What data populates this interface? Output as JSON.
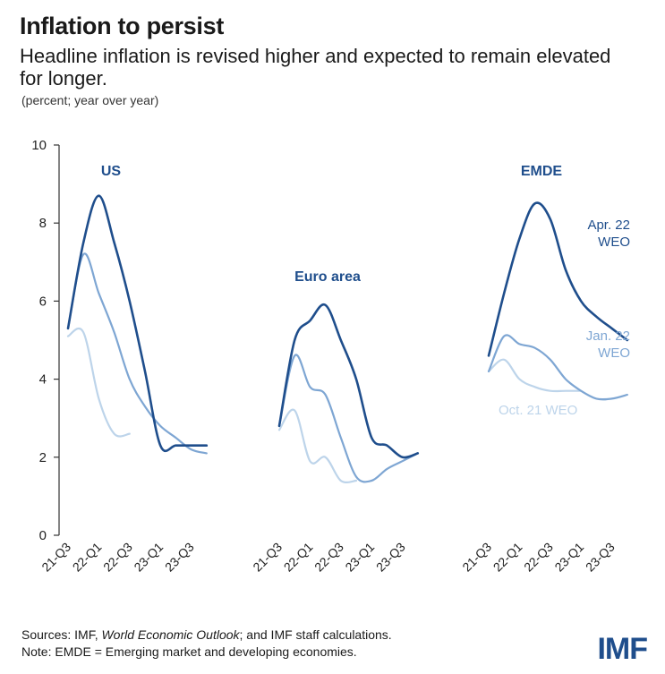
{
  "header": {
    "title": "Inflation to persist",
    "subtitle": "Headline inflation is revised higher and expected to remain elevated for longer.",
    "unit": "(percent; year over year)"
  },
  "footer": {
    "sources_prefix": "Sources: IMF, ",
    "sources_italic": "World Economic Outlook",
    "sources_suffix": "; and IMF staff calculations.",
    "note": "Note: EMDE = Emerging market and developing economies.",
    "logo": "IMF"
  },
  "colors": {
    "apr22": "#1f4e8c",
    "jan22": "#7ea6d3",
    "oct21": "#bdd4ea",
    "axis": "#333333"
  },
  "chart_data": {
    "type": "line",
    "ylim": [
      0,
      10
    ],
    "yticks": [
      0,
      2,
      4,
      6,
      8,
      10
    ],
    "xticks": [
      "21-Q3",
      "22-Q1",
      "22-Q3",
      "23-Q1",
      "23-Q3"
    ],
    "series_labels": {
      "apr22": "Apr. 22\nWEO",
      "jan22": "Jan. 22\nWEO",
      "oct21": "Oct. 21 WEO"
    },
    "panels": [
      {
        "name": "US",
        "series": [
          {
            "key": "oct21",
            "x": [
              0,
              1,
              2,
              3,
              4
            ],
            "y": [
              5.1,
              5.2,
              3.5,
              2.6,
              2.6
            ]
          },
          {
            "key": "jan22",
            "x": [
              0,
              1,
              2,
              3,
              4,
              5,
              6,
              7,
              8,
              9
            ],
            "y": [
              5.3,
              7.2,
              6.2,
              5.2,
              4.0,
              3.3,
              2.8,
              2.5,
              2.2,
              2.1
            ]
          },
          {
            "key": "apr22",
            "x": [
              0,
              1,
              2,
              3,
              4,
              5,
              6,
              7,
              8,
              9
            ],
            "y": [
              5.3,
              7.5,
              8.7,
              7.5,
              6.0,
              4.2,
              2.3,
              2.3,
              2.3,
              2.3
            ]
          }
        ]
      },
      {
        "name": "Euro area",
        "series": [
          {
            "key": "oct21",
            "x": [
              0,
              1,
              2,
              3,
              4,
              5
            ],
            "y": [
              2.7,
              3.2,
              1.9,
              2.0,
              1.4,
              1.4
            ]
          },
          {
            "key": "jan22",
            "x": [
              0,
              1,
              2,
              3,
              4,
              5,
              6,
              7,
              8,
              9
            ],
            "y": [
              2.8,
              4.6,
              3.8,
              3.6,
              2.5,
              1.5,
              1.4,
              1.7,
              1.9,
              2.1
            ]
          },
          {
            "key": "apr22",
            "x": [
              0,
              1,
              2,
              3,
              4,
              5,
              6,
              7,
              8,
              9
            ],
            "y": [
              2.8,
              5.0,
              5.5,
              5.9,
              5.0,
              4.0,
              2.5,
              2.3,
              2.0,
              2.1
            ]
          }
        ]
      },
      {
        "name": "EMDE",
        "series": [
          {
            "key": "oct21",
            "x": [
              0,
              1,
              2,
              3,
              4,
              5,
              6
            ],
            "y": [
              4.2,
              4.5,
              4.0,
              3.8,
              3.7,
              3.7,
              3.7
            ]
          },
          {
            "key": "jan22",
            "x": [
              0,
              1,
              2,
              3,
              4,
              5,
              6,
              7,
              8,
              9
            ],
            "y": [
              4.2,
              5.1,
              4.9,
              4.8,
              4.5,
              4.0,
              3.7,
              3.5,
              3.5,
              3.6
            ]
          },
          {
            "key": "apr22",
            "x": [
              0,
              1,
              2,
              3,
              4,
              5,
              6,
              7,
              8,
              9
            ],
            "y": [
              4.6,
              6.2,
              7.6,
              8.5,
              8.1,
              6.8,
              6.0,
              5.6,
              5.3,
              5.0
            ]
          }
        ]
      }
    ]
  }
}
